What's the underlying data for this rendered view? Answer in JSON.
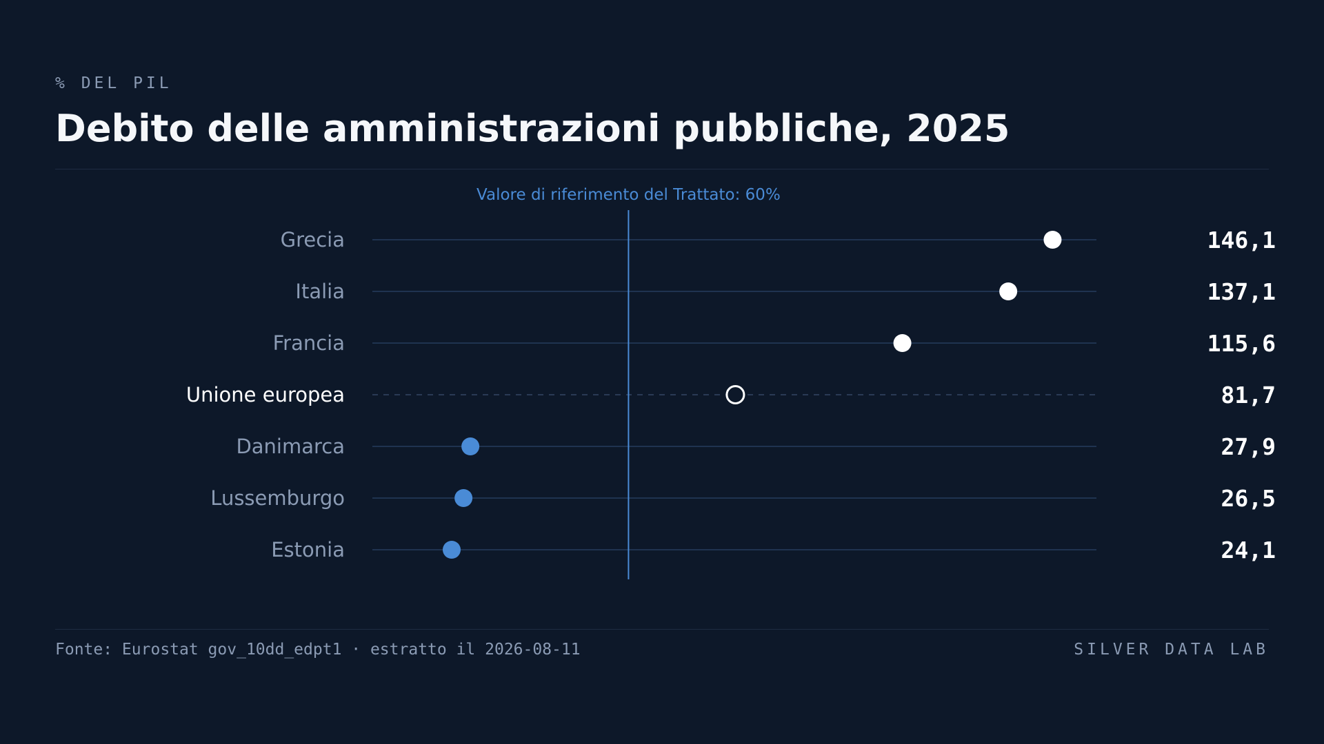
{
  "header": {
    "kicker": "% DEL PIL",
    "title": "Debito delle amministrazioni pubbliche, 2025"
  },
  "footer": {
    "source": "Fonte: Eurostat gov_10dd_edpt1 · estratto il 2026-08-11",
    "brand": "SILVER DATA LAB"
  },
  "colors": {
    "background": "#0d1829",
    "highlight_point": "#ffffff",
    "low_point": "#4a8bd6",
    "reference_line": "#4a8bd6",
    "muted_text": "#8b9bb4",
    "grid_line": "#1f3350"
  },
  "chart_data": {
    "type": "scatter",
    "subtype": "dot-plot",
    "title": "Debito delle amministrazioni pubbliche, 2025",
    "unit_label": "% DEL PIL",
    "categories": [
      "Grecia",
      "Italia",
      "Francia",
      "Unione europea",
      "Danimarca",
      "Lussemburgo",
      "Estonia"
    ],
    "values": [
      146.1,
      137.1,
      115.6,
      81.7,
      27.9,
      26.5,
      24.1
    ],
    "value_labels": [
      "146,1",
      "137,1",
      "115,6",
      "81,7",
      "27,9",
      "26,5",
      "24,1"
    ],
    "aggregate_category": "Unione europea",
    "reference_line": {
      "value": 60,
      "label": "Valore di riferimento del Trattato: 60%"
    },
    "xlim": [
      8,
      155
    ],
    "grid": false,
    "legend": "none"
  }
}
